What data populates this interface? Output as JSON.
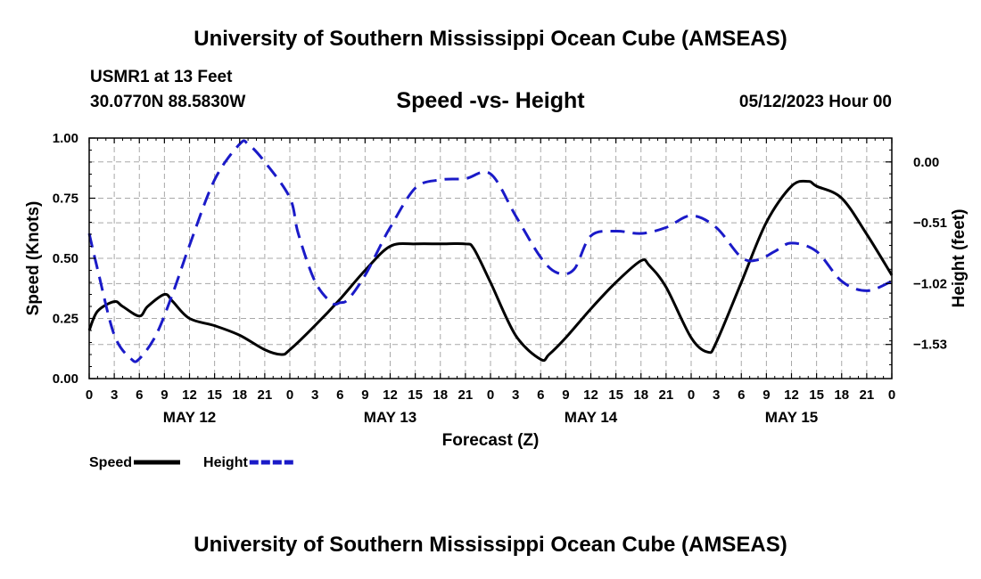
{
  "header": {
    "title": "University of Southern Mississippi Ocean Cube (AMSEAS)",
    "station": "USMR1 at 13 Feet",
    "location": "30.0770N  88.5830W",
    "chart_title": "Speed -vs- Height",
    "date": "05/12/2023 Hour 00"
  },
  "footer": {
    "title": "University of Southern Mississippi Ocean Cube (AMSEAS)"
  },
  "chart_data": {
    "type": "line",
    "title": "Speed -vs- Height",
    "xlabel": "Forecast (Z)",
    "ylabel": "Speed (Knots)",
    "y2label": "Height (feet)",
    "x_range": [
      0,
      96
    ],
    "ylim": [
      0,
      1
    ],
    "y2lim": [
      -1.816,
      0.2
    ],
    "grid": true,
    "x_tick_labels": [
      "0",
      "3",
      "6",
      "9",
      "12",
      "15",
      "18",
      "21",
      "0",
      "3",
      "6",
      "9",
      "12",
      "15",
      "18",
      "21",
      "0",
      "3",
      "6",
      "9",
      "12",
      "15",
      "18",
      "21",
      "0",
      "3",
      "6",
      "9",
      "12",
      "15",
      "18",
      "21",
      "0"
    ],
    "day_labels": [
      {
        "hour": 12,
        "label": "MAY 12"
      },
      {
        "hour": 36,
        "label": "MAY 13"
      },
      {
        "hour": 60,
        "label": "MAY 14"
      },
      {
        "hour": 84,
        "label": "MAY 15"
      }
    ],
    "y_ticks": [
      0,
      0.25,
      0.5,
      0.75,
      1.0
    ],
    "y_tick_labels": [
      "0.00",
      "0.25",
      "0.50",
      "0.75",
      "1.00"
    ],
    "y2_ticks": [
      0.0,
      -0.51,
      -1.02,
      -1.53
    ],
    "y2_tick_labels": [
      "0.00",
      "−0.51",
      "−1.02",
      "−1.53"
    ],
    "series": [
      {
        "name": "Speed",
        "axis": "left",
        "color": "#000000",
        "dash": "solid",
        "x": [
          0,
          1,
          3,
          4,
          6,
          7,
          9,
          10,
          12,
          15,
          18,
          21,
          23,
          24,
          27,
          30,
          33,
          36,
          39,
          42,
          45,
          46,
          48,
          51,
          54,
          55,
          57,
          60,
          63,
          66,
          67,
          69,
          72,
          74,
          75,
          78,
          81,
          84,
          86,
          87,
          90,
          93,
          96
        ],
        "values": [
          0.2,
          0.28,
          0.32,
          0.3,
          0.26,
          0.3,
          0.35,
          0.32,
          0.25,
          0.22,
          0.18,
          0.12,
          0.1,
          0.12,
          0.22,
          0.33,
          0.45,
          0.55,
          0.56,
          0.56,
          0.56,
          0.54,
          0.4,
          0.18,
          0.08,
          0.1,
          0.17,
          0.29,
          0.4,
          0.49,
          0.47,
          0.38,
          0.17,
          0.11,
          0.15,
          0.4,
          0.65,
          0.8,
          0.82,
          0.8,
          0.75,
          0.6,
          0.43
        ]
      },
      {
        "name": "Height",
        "axis": "right",
        "color": "#1a1ac8",
        "dash": "dashed",
        "x": [
          0,
          1,
          3,
          5,
          6,
          8,
          10,
          12,
          15,
          18,
          19,
          21,
          24,
          25,
          27,
          29,
          30,
          31,
          33,
          35,
          36,
          39,
          42,
          45,
          48,
          51,
          54,
          56,
          58,
          60,
          63,
          66,
          69,
          72,
          75,
          78,
          80,
          82,
          84,
          87,
          90,
          93,
          96
        ],
        "values": [
          -0.6,
          -0.9,
          -1.45,
          -1.65,
          -1.65,
          -1.45,
          -1.1,
          -0.7,
          -0.15,
          0.15,
          0.15,
          0.0,
          -0.3,
          -0.6,
          -1.0,
          -1.18,
          -1.18,
          -1.15,
          -0.95,
          -0.68,
          -0.55,
          -0.22,
          -0.15,
          -0.14,
          -0.1,
          -0.45,
          -0.8,
          -0.93,
          -0.9,
          -0.62,
          -0.58,
          -0.6,
          -0.55,
          -0.45,
          -0.55,
          -0.8,
          -0.82,
          -0.75,
          -0.68,
          -0.75,
          -1.0,
          -1.08,
          -1.0
        ]
      }
    ],
    "legend": {
      "placement": "bottom-left",
      "items": [
        {
          "label": "Speed",
          "color": "#000000",
          "dash": "solid"
        },
        {
          "label": "Height",
          "color": "#1a1ac8",
          "dash": "dashed"
        }
      ]
    }
  }
}
